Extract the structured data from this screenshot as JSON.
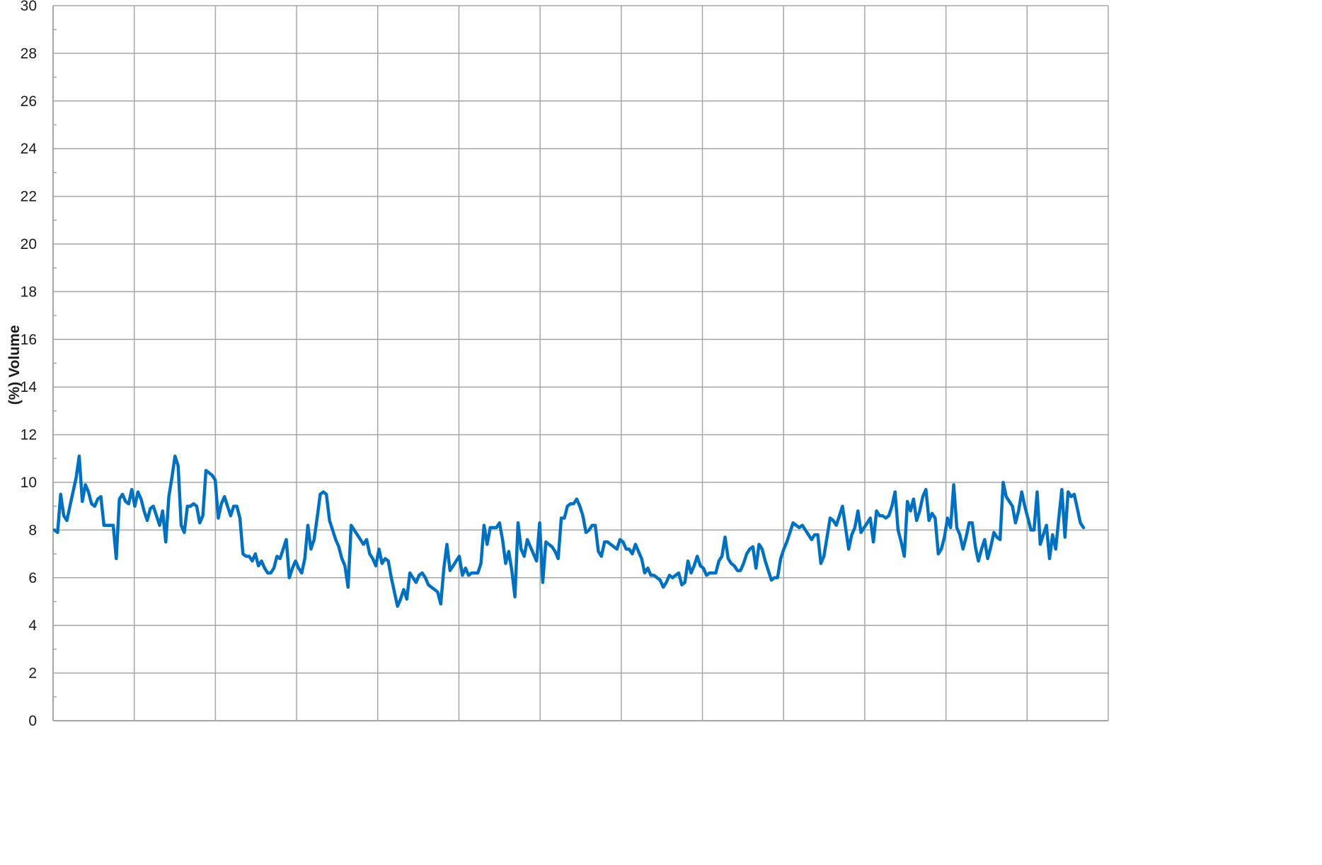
{
  "chart_data": {
    "type": "line",
    "title": "",
    "xlabel": "",
    "ylabel": "(%) Volume",
    "ylim": [
      0,
      30
    ],
    "yticks": [
      0,
      2,
      4,
      6,
      8,
      10,
      12,
      14,
      16,
      18,
      20,
      22,
      24,
      26,
      28,
      30
    ],
    "xlim": [
      0,
      13
    ],
    "x_gridlines": 13,
    "grid": true,
    "legend": "none",
    "colors": {
      "line": "#0070c0",
      "grid": "#a6a6a6",
      "axis": "#a6a6a6"
    },
    "series": [
      {
        "values": [
          8.0,
          7.9,
          9.5,
          8.6,
          8.4,
          9.0,
          9.6,
          10.2,
          11.1,
          9.2,
          9.9,
          9.6,
          9.1,
          9.0,
          9.3,
          9.4,
          8.2,
          8.2,
          8.2,
          8.2,
          6.8,
          9.3,
          9.5,
          9.2,
          9.1,
          9.7,
          9.0,
          9.6,
          9.3,
          8.8,
          8.4,
          8.9,
          9.0,
          8.6,
          8.2,
          8.8,
          7.5,
          9.4,
          10.2,
          11.1,
          10.7,
          8.2,
          7.9,
          9.0,
          9.0,
          9.1,
          9.0,
          8.3,
          8.6,
          10.5,
          10.4,
          10.3,
          10.1,
          8.5,
          9.1,
          9.4,
          9.0,
          8.6,
          9.0,
          9.0,
          8.5,
          7.0,
          6.9,
          6.9,
          6.7,
          7.0,
          6.5,
          6.7,
          6.4,
          6.2,
          6.2,
          6.4,
          6.9,
          6.8,
          7.2,
          7.6,
          6.0,
          6.4,
          6.7,
          6.4,
          6.2,
          6.8,
          8.2,
          7.2,
          7.6,
          8.5,
          9.5,
          9.6,
          9.5,
          8.4,
          8.0,
          7.6,
          7.3,
          6.8,
          6.5,
          5.6,
          8.2,
          8.0,
          7.8,
          7.6,
          7.4,
          7.6,
          7.0,
          6.8,
          6.5,
          7.2,
          6.6,
          6.8,
          6.7,
          6.0,
          5.4,
          4.8,
          5.1,
          5.5,
          5.1,
          6.2,
          6.0,
          5.8,
          6.1,
          6.2,
          6.0,
          5.7,
          5.6,
          5.5,
          5.4,
          4.9,
          6.4,
          7.4,
          6.3,
          6.5,
          6.7,
          6.9,
          6.1,
          6.4,
          6.1,
          6.2,
          6.2,
          6.2,
          6.6,
          8.2,
          7.4,
          8.1,
          8.1,
          8.1,
          8.3,
          7.6,
          6.6,
          7.1,
          6.3,
          5.2,
          8.3,
          7.2,
          6.9,
          7.6,
          7.3,
          7.0,
          6.7,
          8.3,
          5.8,
          7.5,
          7.4,
          7.3,
          7.1,
          6.8,
          8.5,
          8.5,
          9.0,
          9.1,
          9.1,
          9.3,
          9.0,
          8.6,
          7.9,
          8.0,
          8.2,
          8.2,
          7.1,
          6.9,
          7.5,
          7.5,
          7.4,
          7.3,
          7.2,
          7.6,
          7.5,
          7.2,
          7.2,
          7.0,
          7.4,
          7.1,
          6.8,
          6.2,
          6.4,
          6.1,
          6.1,
          6.0,
          5.9,
          5.6,
          5.8,
          6.1,
          6.0,
          6.1,
          6.2,
          5.7,
          5.8,
          6.7,
          6.2,
          6.5,
          6.9,
          6.5,
          6.4,
          6.1,
          6.2,
          6.2,
          6.2,
          6.7,
          6.9,
          7.7,
          6.8,
          6.6,
          6.5,
          6.3,
          6.3,
          6.6,
          7.0,
          7.2,
          7.3,
          6.4,
          7.4,
          7.2,
          6.7,
          6.3,
          5.9,
          6.0,
          6.0,
          6.8,
          7.2,
          7.5,
          7.9,
          8.3,
          8.2,
          8.1,
          8.2,
          8.0,
          7.8,
          7.6,
          7.8,
          7.8,
          6.6,
          6.9,
          7.7,
          8.5,
          8.4,
          8.2,
          8.6,
          9.0,
          8.1,
          7.2,
          7.8,
          8.1,
          8.8,
          7.9,
          8.1,
          8.3,
          8.5,
          7.5,
          8.8,
          8.6,
          8.6,
          8.5,
          8.6,
          9.0,
          9.6,
          8.0,
          7.5,
          6.9,
          9.2,
          8.8,
          9.3,
          8.4,
          8.8,
          9.4,
          9.7,
          8.4,
          8.7,
          8.5,
          7.0,
          7.2,
          7.7,
          8.5,
          8.1,
          9.9,
          8.1,
          7.8,
          7.2,
          7.7,
          8.3,
          8.3,
          7.3,
          6.7,
          7.2,
          7.6,
          6.8,
          7.3,
          7.9,
          7.7,
          7.6,
          10.0,
          9.4,
          9.2,
          9.0,
          8.3,
          8.8,
          9.6,
          9.0,
          8.5,
          8.0,
          8.0,
          9.6,
          7.4,
          7.8,
          8.2,
          6.8,
          7.8,
          7.2,
          8.5,
          9.7,
          7.7,
          9.6,
          9.4,
          9.5,
          8.9,
          8.3,
          8.1
        ]
      }
    ]
  }
}
